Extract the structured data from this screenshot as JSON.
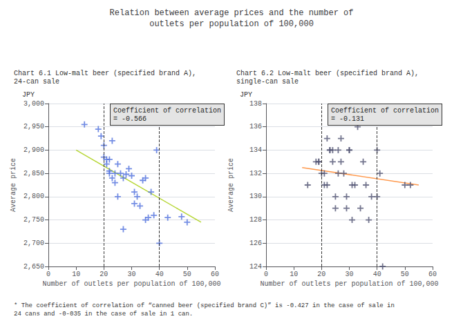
{
  "title": "Relation between average prices and the number of\noutlets per population of 100,000",
  "footnote": "* The coefficient of correlation of “canned beer (specified brand C)” is -0.427 in the case of sale in\n24 cans and -0-035 in the case of sale in 1 can.",
  "chart_data": [
    {
      "type": "scatter",
      "subtitle": "Chart 6.1 Low-malt beer (specified brand A),\n24-can sale",
      "xlabel": "Number of outlets per population of 100,000",
      "ylabel": "Average price",
      "annotations": [
        "JPY",
        "Coefficient of correlation\n= -0.566"
      ],
      "xlim": [
        0,
        60
      ],
      "ylim": [
        2650,
        3000
      ],
      "xticks": [
        0,
        10,
        20,
        30,
        40,
        50,
        60
      ],
      "yticks": [
        {
          "value": 2650,
          "label": "2,650"
        },
        {
          "value": 2700,
          "label": "2,700"
        },
        {
          "value": 2750,
          "label": "2,750"
        },
        {
          "value": 2800,
          "label": "2,800"
        },
        {
          "value": 2850,
          "label": "2,850"
        },
        {
          "value": 2900,
          "label": "2,900"
        },
        {
          "value": 2950,
          "label": "2,950"
        },
        {
          "value": 3000,
          "label": "3,000"
        }
      ],
      "grid": true,
      "vlines": [
        20,
        40
      ],
      "series": [
        {
          "type": "scatter",
          "marker": "plus",
          "x": [
            13,
            18,
            19,
            20,
            20,
            21,
            21,
            22,
            22,
            22,
            23,
            23,
            24,
            24,
            25,
            25,
            26,
            27,
            27,
            28,
            29,
            30,
            31,
            31,
            32,
            33,
            34,
            35,
            35,
            36,
            37,
            38,
            39,
            40,
            43,
            48,
            50
          ],
          "values": [
            2955,
            2945,
            2930,
            2910,
            2885,
            2880,
            2870,
            2880,
            2855,
            2850,
            2840,
            2920,
            2850,
            2830,
            2870,
            2800,
            2850,
            2840,
            2730,
            2848,
            2860,
            2845,
            2810,
            2785,
            2800,
            2780,
            2835,
            2750,
            2840,
            2755,
            2810,
            2760,
            2900,
            2700,
            2755,
            2757,
            2745
          ]
        },
        {
          "type": "line",
          "line_style": "solid",
          "x": [
            10,
            55
          ],
          "values": [
            2900,
            2745
          ]
        }
      ]
    },
    {
      "type": "scatter",
      "subtitle": "Chart 6.2 Low-malt beer (specified brand A),\nsingle-can sale",
      "xlabel": "Number of outlets per population of 100,000",
      "ylabel": "Average price",
      "annotations": [
        "JPY",
        "Coefficient of correlation\n= -0.131"
      ],
      "xlim": [
        0,
        60
      ],
      "ylim": [
        124,
        138
      ],
      "xticks": [
        0,
        10,
        20,
        30,
        40,
        50,
        60
      ],
      "yticks": [
        124,
        126,
        128,
        130,
        132,
        134,
        136,
        138
      ],
      "grid": true,
      "vlines": [
        20,
        40
      ],
      "series": [
        {
          "type": "scatter",
          "marker": "plus",
          "x": [
            15,
            18,
            19,
            19,
            20,
            21,
            21,
            22,
            22,
            23,
            23,
            24,
            24,
            25,
            25,
            26,
            26,
            27,
            27,
            28,
            29,
            29,
            30,
            30,
            31,
            31,
            32,
            33,
            34,
            35,
            36,
            37,
            38,
            40,
            40,
            41,
            42,
            50,
            52
          ],
          "values": [
            131,
            133,
            133,
            133,
            132,
            131,
            132,
            131,
            135,
            134,
            134,
            134,
            133,
            130,
            129,
            134,
            132,
            135,
            133,
            132,
            130,
            129,
            134,
            134,
            131,
            128,
            131,
            136,
            129,
            133,
            131,
            128,
            130,
            134,
            130,
            132,
            124,
            131,
            131
          ]
        },
        {
          "type": "line",
          "line_style": "solid",
          "x": [
            13,
            55
          ],
          "values": [
            132.5,
            131.0
          ]
        }
      ]
    }
  ]
}
